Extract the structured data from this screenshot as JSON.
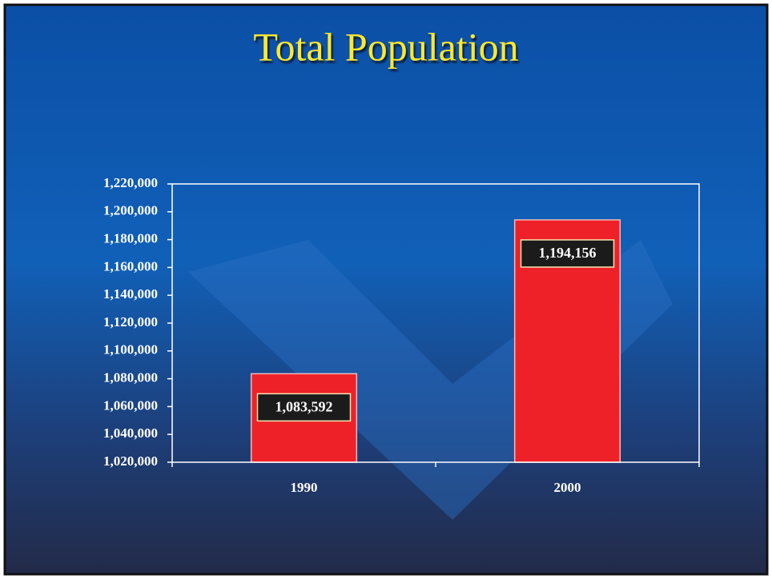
{
  "chart_data": {
    "type": "bar",
    "title": "Total Population",
    "categories": [
      "1990",
      "2000"
    ],
    "values": [
      1083592,
      1194156
    ],
    "value_labels": [
      "1,083,592",
      "1,194,156"
    ],
    "color": "#ee2128",
    "ylim": [
      1020000,
      1220000
    ],
    "yticks": [
      {
        "value": 1020000,
        "label": "1,020,000"
      },
      {
        "value": 1040000,
        "label": "1,040,000"
      },
      {
        "value": 1060000,
        "label": "1,060,000"
      },
      {
        "value": 1080000,
        "label": "1,080,000"
      },
      {
        "value": 1100000,
        "label": "1,100,000"
      },
      {
        "value": 1120000,
        "label": "1,120,000"
      },
      {
        "value": 1140000,
        "label": "1,140,000"
      },
      {
        "value": 1160000,
        "label": "1,160,000"
      },
      {
        "value": 1180000,
        "label": "1,180,000"
      },
      {
        "value": 1200000,
        "label": "1,200,000"
      },
      {
        "value": 1220000,
        "label": "1,220,000"
      }
    ],
    "grid": false
  }
}
